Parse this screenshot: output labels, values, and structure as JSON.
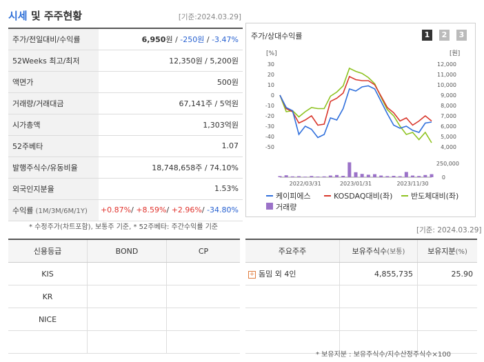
{
  "header": {
    "title_accent": "시세",
    "title_rest": " 및 주주현황",
    "as_of": "[기준:2024.03.29]"
  },
  "quote_rows": [
    {
      "label": "주가/전일대비/수익률",
      "value_main": "6,950",
      "unit": "원 / ",
      "value_change": "-250원",
      "sep": " / ",
      "value_rate": "-3.47%"
    },
    {
      "label": "52Weeks 최고/최저",
      "value": "12,350원 / 5,200원"
    },
    {
      "label": "액면가",
      "value": "500원"
    },
    {
      "label": "거래량/거래대금",
      "value": "67,141주 / 5억원"
    },
    {
      "label": "시가총액",
      "value": "1,303억원"
    },
    {
      "label": "52주베타",
      "value": "1.07"
    },
    {
      "label": "발행주식수/유동비율",
      "value": "18,748,658주 / 74.10%"
    },
    {
      "label": "외국인지분율",
      "value": "1.53%"
    },
    {
      "label": "수익률",
      "label_sub": " (1M/3M/6M/1Y)",
      "r1": "+0.87%",
      "r2": "+8.59%",
      "r3": "+2.96%",
      "r4": "-34.80%"
    }
  ],
  "note_top": "* 수정주가(차트포함), 보통주 기준, * 52주베타: 주간수익률 기준",
  "chart_panel": {
    "title": "주가/상대수익률",
    "pages": [
      "1",
      "2",
      "3"
    ],
    "left_unit": "[%]",
    "right_unit": "[원]",
    "legend": {
      "s1": "케이피에스",
      "s2": "KOSDAQ대비(좌)",
      "s3": "반도체대비(좌)",
      "s4": "거래량"
    }
  },
  "colors": {
    "price": "#2f6fdc",
    "kosdaq": "#d8352a",
    "semi": "#8dc21f",
    "volume": "#9b72c8",
    "accent": "#2e6fd8"
  },
  "chart_data": {
    "type": "line",
    "x_ticks": [
      "2022/03/31",
      "2023/01/31",
      "2023/11/30"
    ],
    "left_axis": {
      "ticks": [
        "30",
        "20",
        "10",
        "0",
        "-10",
        "-20",
        "-30",
        "-40",
        "-50"
      ],
      "range": [
        -50,
        30
      ]
    },
    "right_axis": {
      "ticks": [
        "12,000",
        "11,000",
        "10,000",
        "9,000",
        "8,000",
        "7,000",
        "6,000",
        "5,000",
        "4,000"
      ],
      "range": [
        4000,
        12000
      ]
    },
    "volume_axis": {
      "ticks": [
        "250,000",
        "0"
      ],
      "range": [
        0,
        250000
      ]
    },
    "x_index": [
      0,
      1,
      2,
      3,
      4,
      5,
      6,
      7,
      8,
      9,
      10,
      11,
      12,
      13,
      14,
      15,
      16,
      17,
      18,
      19,
      20,
      21,
      22,
      23,
      24
    ],
    "series": [
      {
        "name": "케이피에스",
        "axis": "right",
        "values": [
          9000,
          7800,
          7500,
          5200,
          6000,
          5700,
          4900,
          5200,
          6800,
          6600,
          7700,
          9600,
          9400,
          9800,
          9900,
          9600,
          8400,
          7200,
          6100,
          5800,
          6000,
          5600,
          5400,
          6300,
          6400
        ]
      },
      {
        "name": "KOSDAQ대비(좌)",
        "axis": "left",
        "values": [
          0,
          -13,
          -16,
          -27,
          -24,
          -20,
          -29,
          -28,
          -6,
          -3,
          2,
          18,
          15,
          14,
          14,
          10,
          -1,
          -12,
          -17,
          -25,
          -22,
          -29,
          -25,
          -20,
          -25
        ]
      },
      {
        "name": "반도체대비(좌)",
        "axis": "left",
        "values": [
          0,
          -16,
          -15,
          -21,
          -16,
          -12,
          -13,
          -13,
          -1,
          3,
          9,
          26,
          23,
          21,
          17,
          11,
          -2,
          -14,
          -20,
          -30,
          -38,
          -36,
          -43,
          -36,
          -46
        ]
      },
      {
        "name": "거래량",
        "axis": "volume",
        "values": [
          20000,
          35000,
          15000,
          18000,
          10000,
          22000,
          12000,
          15000,
          30000,
          40000,
          25000,
          270000,
          90000,
          60000,
          45000,
          55000,
          30000,
          20000,
          25000,
          18000,
          95000,
          30000,
          22000,
          40000,
          55000
        ]
      }
    ]
  },
  "credit_table": {
    "headers": [
      "신용등급",
      "BOND",
      "CP"
    ],
    "rows": [
      [
        "KIS",
        "",
        ""
      ],
      [
        "KR",
        "",
        ""
      ],
      [
        "NICE",
        "",
        ""
      ],
      [
        "",
        "",
        ""
      ]
    ]
  },
  "holders_asof": "[기준: 2024.03.29]",
  "holders_table": {
    "headers": [
      "주요주주",
      "보유주식수",
      "(보통)",
      "보유지분",
      "(%)"
    ],
    "rows": [
      {
        "name": "돔밈 외 4인",
        "shares": "4,855,735",
        "pct": "25.90"
      }
    ]
  },
  "note_bottom": "* 보유지분 : 보유주식수/지수산정주식수×100"
}
